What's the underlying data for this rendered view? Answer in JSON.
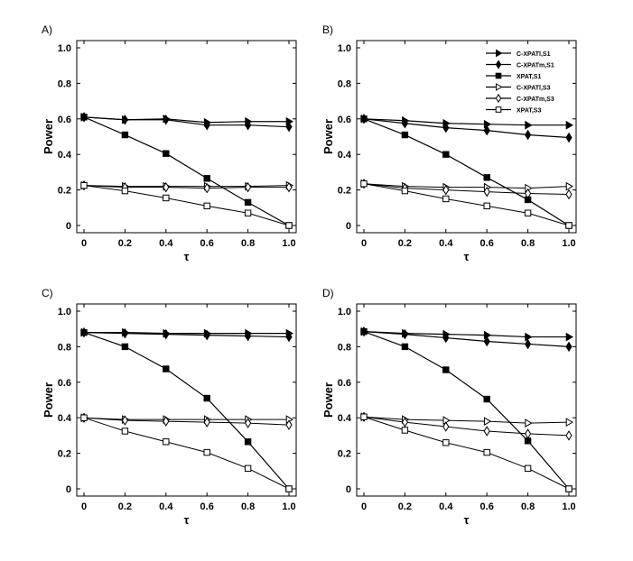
{
  "chart_data": [
    {
      "type": "line",
      "panel_label": "A)",
      "xlabel": "τ",
      "ylabel": "Power",
      "xlim": [
        0,
        1
      ],
      "ylim": [
        0,
        1
      ],
      "x_ticks": [
        "0",
        "0.2",
        "0.4",
        "0.6",
        "0.8",
        "1.0"
      ],
      "y_ticks": [
        "0",
        "0.2",
        "0.4",
        "0.6",
        "0.8",
        "1.0"
      ],
      "x": [
        0,
        0.2,
        0.4,
        0.6,
        0.8,
        1.0
      ],
      "legend": false,
      "series": [
        {
          "name": "C-XPATl,S1",
          "marker": "tri-right-filled",
          "values": [
            0.61,
            0.595,
            0.6,
            0.58,
            0.585,
            0.585
          ]
        },
        {
          "name": "C-XPATm,S1",
          "marker": "diamond-filled",
          "values": [
            0.61,
            0.595,
            0.595,
            0.565,
            0.565,
            0.555
          ]
        },
        {
          "name": "XPAT,S1",
          "marker": "square-filled",
          "values": [
            0.61,
            0.51,
            0.405,
            0.265,
            0.13,
            0.0
          ]
        },
        {
          "name": "C-XPATl,S3",
          "marker": "tri-right-open",
          "values": [
            0.225,
            0.22,
            0.22,
            0.22,
            0.22,
            0.225
          ]
        },
        {
          "name": "C-XPATm,S3",
          "marker": "diamond-open",
          "values": [
            0.225,
            0.215,
            0.215,
            0.21,
            0.215,
            0.215
          ]
        },
        {
          "name": "XPAT,S3",
          "marker": "square-open",
          "values": [
            0.225,
            0.195,
            0.155,
            0.11,
            0.07,
            0.0
          ]
        }
      ]
    },
    {
      "type": "line",
      "panel_label": "B)",
      "xlabel": "τ",
      "ylabel": "Power",
      "xlim": [
        0,
        1
      ],
      "ylim": [
        0,
        1
      ],
      "x_ticks": [
        "0",
        "0.2",
        "0.4",
        "0.6",
        "0.8",
        "1.0"
      ],
      "y_ticks": [
        "0",
        "0.2",
        "0.4",
        "0.6",
        "0.8",
        "1.0"
      ],
      "x": [
        0,
        0.2,
        0.4,
        0.6,
        0.8,
        1.0
      ],
      "legend": true,
      "legend_position": "top-right",
      "series": [
        {
          "name": "C-XPATl,S1",
          "marker": "tri-right-filled",
          "values": [
            0.6,
            0.59,
            0.575,
            0.57,
            0.565,
            0.565
          ]
        },
        {
          "name": "C-XPATm,S1",
          "marker": "diamond-filled",
          "values": [
            0.6,
            0.575,
            0.55,
            0.535,
            0.51,
            0.495
          ]
        },
        {
          "name": "XPAT,S1",
          "marker": "square-filled",
          "values": [
            0.6,
            0.51,
            0.4,
            0.27,
            0.145,
            0.0
          ]
        },
        {
          "name": "C-XPATl,S3",
          "marker": "tri-right-open",
          "values": [
            0.235,
            0.22,
            0.215,
            0.215,
            0.21,
            0.22
          ]
        },
        {
          "name": "C-XPATm,S3",
          "marker": "diamond-open",
          "values": [
            0.235,
            0.21,
            0.2,
            0.19,
            0.18,
            0.175
          ]
        },
        {
          "name": "XPAT,S3",
          "marker": "square-open",
          "values": [
            0.235,
            0.195,
            0.15,
            0.11,
            0.07,
            0.0
          ]
        }
      ]
    },
    {
      "type": "line",
      "panel_label": "C)",
      "xlabel": "τ",
      "ylabel": "Power",
      "xlim": [
        0,
        1
      ],
      "ylim": [
        0,
        1
      ],
      "x_ticks": [
        "0",
        "0.2",
        "0.4",
        "0.6",
        "0.8",
        "1.0"
      ],
      "y_ticks": [
        "0",
        "0.2",
        "0.4",
        "0.6",
        "0.8",
        "1.0"
      ],
      "x": [
        0,
        0.2,
        0.4,
        0.6,
        0.8,
        1.0
      ],
      "legend": false,
      "series": [
        {
          "name": "C-XPATl,S1",
          "marker": "tri-right-filled",
          "values": [
            0.88,
            0.88,
            0.875,
            0.875,
            0.875,
            0.875
          ]
        },
        {
          "name": "C-XPATm,S1",
          "marker": "diamond-filled",
          "values": [
            0.88,
            0.875,
            0.87,
            0.865,
            0.86,
            0.855
          ]
        },
        {
          "name": "XPAT,S1",
          "marker": "square-filled",
          "values": [
            0.88,
            0.8,
            0.675,
            0.51,
            0.265,
            0.0
          ]
        },
        {
          "name": "C-XPATl,S3",
          "marker": "tri-right-open",
          "values": [
            0.4,
            0.39,
            0.39,
            0.39,
            0.39,
            0.39
          ]
        },
        {
          "name": "C-XPATm,S3",
          "marker": "diamond-open",
          "values": [
            0.4,
            0.385,
            0.38,
            0.375,
            0.37,
            0.36
          ]
        },
        {
          "name": "XPAT,S3",
          "marker": "square-open",
          "values": [
            0.4,
            0.325,
            0.265,
            0.205,
            0.115,
            0.0
          ]
        }
      ]
    },
    {
      "type": "line",
      "panel_label": "D)",
      "xlabel": "τ",
      "ylabel": "Power",
      "xlim": [
        0,
        1
      ],
      "ylim": [
        0,
        1
      ],
      "x_ticks": [
        "0",
        "0.2",
        "0.4",
        "0.6",
        "0.8",
        "1.0"
      ],
      "y_ticks": [
        "0",
        "0.2",
        "0.4",
        "0.6",
        "0.8",
        "1.0"
      ],
      "x": [
        0,
        0.2,
        0.4,
        0.6,
        0.8,
        1.0
      ],
      "legend": false,
      "series": [
        {
          "name": "C-XPATl,S1",
          "marker": "tri-right-filled",
          "values": [
            0.885,
            0.875,
            0.87,
            0.865,
            0.855,
            0.855
          ]
        },
        {
          "name": "C-XPATm,S1",
          "marker": "diamond-filled",
          "values": [
            0.885,
            0.87,
            0.85,
            0.83,
            0.815,
            0.8
          ]
        },
        {
          "name": "XPAT,S1",
          "marker": "square-filled",
          "values": [
            0.885,
            0.8,
            0.67,
            0.505,
            0.27,
            0.0
          ]
        },
        {
          "name": "C-XPATl,S3",
          "marker": "tri-right-open",
          "values": [
            0.405,
            0.39,
            0.385,
            0.38,
            0.37,
            0.375
          ]
        },
        {
          "name": "C-XPATm,S3",
          "marker": "diamond-open",
          "values": [
            0.405,
            0.375,
            0.35,
            0.325,
            0.31,
            0.3
          ]
        },
        {
          "name": "XPAT,S3",
          "marker": "square-open",
          "values": [
            0.405,
            0.33,
            0.26,
            0.205,
            0.115,
            0.0
          ]
        }
      ]
    }
  ]
}
